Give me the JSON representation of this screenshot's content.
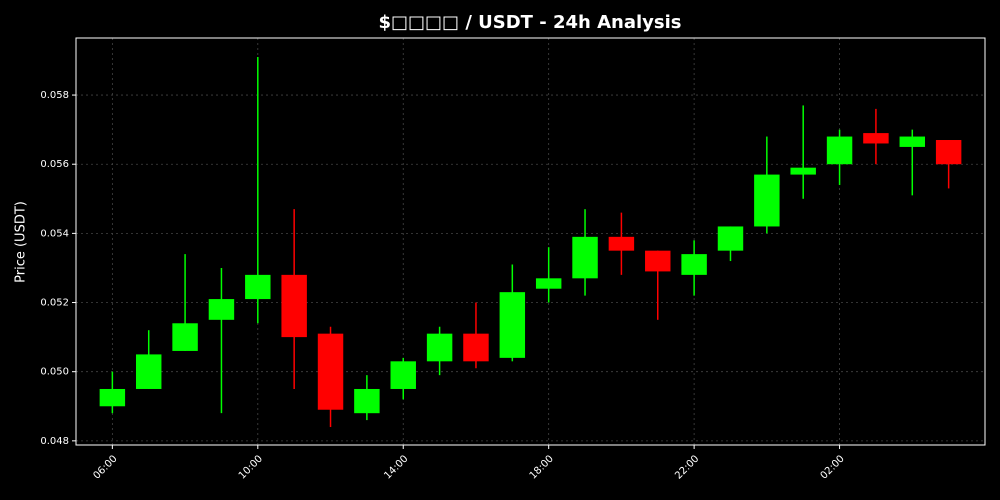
{
  "chart_data": {
    "type": "candlestick",
    "title": "$□□□□ / USDT - 24h Analysis",
    "y_label": "Price (USDT)",
    "categories": [
      "06:00",
      null,
      null,
      null,
      "10:00",
      null,
      null,
      null,
      "14:00",
      null,
      null,
      null,
      "18:00",
      null,
      null,
      null,
      "22:00",
      null,
      null,
      null,
      "02:00",
      null,
      null,
      null
    ],
    "open": [
      0.049,
      0.0495,
      0.0506,
      0.0515,
      0.0521,
      0.0528,
      0.0511,
      0.0488,
      0.0495,
      0.0503,
      0.0511,
      0.0504,
      0.0524,
      0.0527,
      0.0539,
      0.0535,
      0.0528,
      0.0535,
      0.0542,
      0.0557,
      0.056,
      0.0569,
      0.0565,
      0.0567
    ],
    "high": [
      0.05,
      0.0512,
      0.0534,
      0.053,
      0.0591,
      0.0547,
      0.0513,
      0.0499,
      0.0504,
      0.0513,
      0.052,
      0.0531,
      0.0536,
      0.0547,
      0.0546,
      0.0535,
      0.0538,
      0.0542,
      0.0568,
      0.0577,
      0.057,
      0.0576,
      0.057,
      0.0567
    ],
    "low": [
      0.0488,
      0.0495,
      0.0506,
      0.0488,
      0.0514,
      0.0495,
      0.0484,
      0.0486,
      0.0492,
      0.0499,
      0.0501,
      0.0503,
      0.052,
      0.0522,
      0.0528,
      0.0515,
      0.0522,
      0.0532,
      0.054,
      0.055,
      0.0554,
      0.056,
      0.0551,
      0.0553
    ],
    "close": [
      0.0495,
      0.0505,
      0.0514,
      0.0521,
      0.0528,
      0.051,
      0.0489,
      0.0495,
      0.0503,
      0.0511,
      0.0503,
      0.0523,
      0.0527,
      0.0539,
      0.0535,
      0.0529,
      0.0534,
      0.0542,
      0.0557,
      0.0559,
      0.0568,
      0.0566,
      0.0568,
      0.056
    ],
    "up_color": "#00ff00",
    "down_color": "#ff0000",
    "ylim": [
      0.04788,
      0.05965
    ],
    "yticks": [
      0.048,
      {
        "value": 0.05,
        "label": "0.050"
      },
      0.052,
      0.054,
      0.056,
      0.058
    ],
    "grid": true
  }
}
